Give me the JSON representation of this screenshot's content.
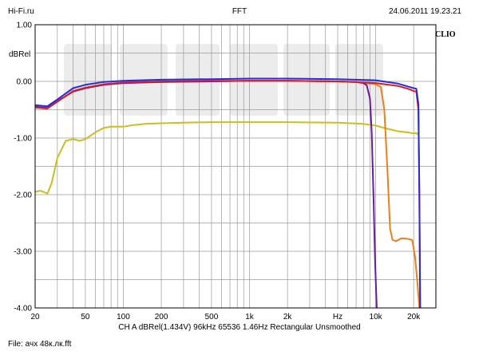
{
  "header": {
    "left": "Hi-Fi.ru",
    "center": "FFT",
    "right": "24.06.2011 19.23.21"
  },
  "footer": {
    "info": "CH A   dBRel(1.434V)   96kHz   65536   1.46Hz   Rectangular   Unsmoothed",
    "file": "File: ачх 48к.лк.fft"
  },
  "brand": "CLIO",
  "chart_data": {
    "type": "line",
    "title": "FFT",
    "ylabel": "dBRel",
    "xlabel": "Hz",
    "xscale": "log",
    "xlim": [
      20,
      30000
    ],
    "ylim": [
      -4,
      1
    ],
    "grid": true,
    "yticks": [
      {
        "v": 1,
        "label": "1.00"
      },
      {
        "v": 0,
        "label": "0.00"
      },
      {
        "v": -1,
        "label": "-1.00"
      },
      {
        "v": -2,
        "label": "-2.00"
      },
      {
        "v": -3,
        "label": "-3.00"
      },
      {
        "v": -4,
        "label": "-4.00"
      }
    ],
    "xticks": [
      {
        "v": 20,
        "label": "20"
      },
      {
        "v": 50,
        "label": "50"
      },
      {
        "v": 100,
        "label": "100"
      },
      {
        "v": 200,
        "label": "200"
      },
      {
        "v": 500,
        "label": "500"
      },
      {
        "v": 1000,
        "label": "1k"
      },
      {
        "v": 2000,
        "label": "2k"
      },
      {
        "v": 5000,
        "label": "Hz"
      },
      {
        "v": 10000,
        "label": "10k"
      },
      {
        "v": 20000,
        "label": "20k"
      }
    ],
    "series": [
      {
        "color": "#c8c020",
        "points": [
          [
            20,
            -1.95
          ],
          [
            22,
            -1.93
          ],
          [
            25,
            -1.98
          ],
          [
            27,
            -1.8
          ],
          [
            30,
            -1.35
          ],
          [
            35,
            -1.05
          ],
          [
            40,
            -1.02
          ],
          [
            45,
            -1.05
          ],
          [
            50,
            -1.02
          ],
          [
            60,
            -0.9
          ],
          [
            70,
            -0.82
          ],
          [
            80,
            -0.8
          ],
          [
            100,
            -0.8
          ],
          [
            120,
            -0.77
          ],
          [
            150,
            -0.75
          ],
          [
            200,
            -0.74
          ],
          [
            300,
            -0.73
          ],
          [
            500,
            -0.72
          ],
          [
            1000,
            -0.72
          ],
          [
            2000,
            -0.72
          ],
          [
            5000,
            -0.73
          ],
          [
            8000,
            -0.75
          ],
          [
            10000,
            -0.78
          ],
          [
            12000,
            -0.83
          ],
          [
            15000,
            -0.88
          ],
          [
            18000,
            -0.9
          ],
          [
            20000,
            -0.92
          ],
          [
            21000,
            -0.91
          ],
          [
            22000,
            -0.95
          ]
        ]
      },
      {
        "color": "#e8801e",
        "points": [
          [
            20,
            -0.45
          ],
          [
            25,
            -0.47
          ],
          [
            30,
            -0.35
          ],
          [
            40,
            -0.18
          ],
          [
            50,
            -0.12
          ],
          [
            70,
            -0.06
          ],
          [
            100,
            -0.03
          ],
          [
            200,
            -0.01
          ],
          [
            500,
            0.0
          ],
          [
            1000,
            0.01
          ],
          [
            2000,
            0.01
          ],
          [
            5000,
            0.0
          ],
          [
            7000,
            -0.01
          ],
          [
            8000,
            -0.03
          ],
          [
            9000,
            -0.04
          ],
          [
            10000,
            -0.05
          ],
          [
            11000,
            -0.1
          ],
          [
            11700,
            -0.5
          ],
          [
            12400,
            -1.6
          ],
          [
            13000,
            -2.6
          ],
          [
            13600,
            -2.8
          ],
          [
            14500,
            -2.82
          ],
          [
            16000,
            -2.77
          ],
          [
            18000,
            -2.78
          ],
          [
            19500,
            -2.8
          ],
          [
            20500,
            -3.1
          ],
          [
            21500,
            -3.6
          ],
          [
            22200,
            -4.0
          ]
        ]
      },
      {
        "color": "#6a1a9a",
        "points": [
          [
            20,
            -0.45
          ],
          [
            25,
            -0.47
          ],
          [
            30,
            -0.35
          ],
          [
            40,
            -0.18
          ],
          [
            50,
            -0.12
          ],
          [
            70,
            -0.06
          ],
          [
            100,
            -0.03
          ],
          [
            200,
            -0.01
          ],
          [
            500,
            0.0
          ],
          [
            1000,
            0.01
          ],
          [
            2000,
            0.01
          ],
          [
            5000,
            0.0
          ],
          [
            7000,
            -0.01
          ],
          [
            8000,
            -0.03
          ],
          [
            8500,
            -0.07
          ],
          [
            9000,
            -0.3
          ],
          [
            9300,
            -0.9
          ],
          [
            9600,
            -2.0
          ],
          [
            9900,
            -3.2
          ],
          [
            10200,
            -4.0
          ]
        ]
      },
      {
        "color": "#d42020",
        "points": [
          [
            20,
            -0.46
          ],
          [
            25,
            -0.48
          ],
          [
            30,
            -0.36
          ],
          [
            40,
            -0.17
          ],
          [
            50,
            -0.11
          ],
          [
            70,
            -0.05
          ],
          [
            100,
            -0.02
          ],
          [
            200,
            0.0
          ],
          [
            500,
            0.01
          ],
          [
            1000,
            0.01
          ],
          [
            2000,
            0.01
          ],
          [
            5000,
            0.0
          ],
          [
            10000,
            -0.03
          ],
          [
            15000,
            -0.08
          ],
          [
            18000,
            -0.13
          ],
          [
            20000,
            -0.17
          ],
          [
            21000,
            -0.18
          ],
          [
            21800,
            -0.5
          ],
          [
            22200,
            -2.0
          ],
          [
            22500,
            -4.0
          ]
        ]
      },
      {
        "color": "#2b2bd8",
        "points": [
          [
            20,
            -0.42
          ],
          [
            25,
            -0.44
          ],
          [
            30,
            -0.32
          ],
          [
            40,
            -0.12
          ],
          [
            50,
            -0.06
          ],
          [
            70,
            -0.01
          ],
          [
            100,
            0.01
          ],
          [
            200,
            0.03
          ],
          [
            500,
            0.04
          ],
          [
            1000,
            0.05
          ],
          [
            2000,
            0.05
          ],
          [
            5000,
            0.04
          ],
          [
            10000,
            0.02
          ],
          [
            15000,
            -0.04
          ],
          [
            18000,
            -0.09
          ],
          [
            20000,
            -0.12
          ],
          [
            21000,
            -0.13
          ],
          [
            21800,
            -0.4
          ],
          [
            22200,
            -2.0
          ],
          [
            22500,
            -4.0
          ]
        ]
      }
    ]
  }
}
